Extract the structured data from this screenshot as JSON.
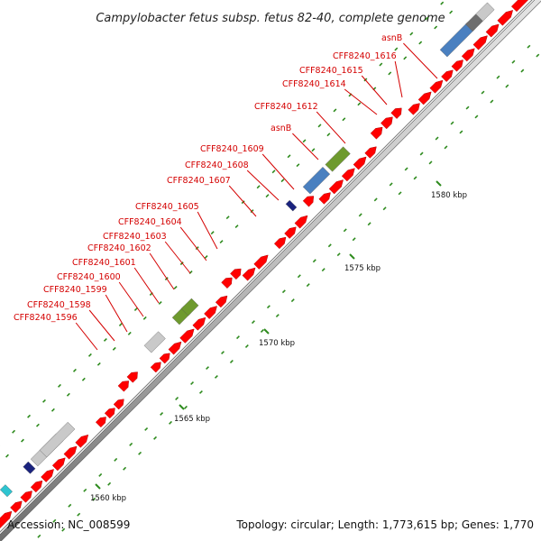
{
  "title": "Campylobacter fetus subsp. fetus 82-40, complete genome",
  "accession": "Accession: NC_008599",
  "topology": "Topology: circular; Length: 1,773,615 bp; Genes: 1,770",
  "colors": {
    "backbone_fill": "#c8c8c8",
    "backbone_edge": "#5a5a5a",
    "cds": "#ff0000",
    "cds_light": "#ff8a8a",
    "tick": "#2e8b1e",
    "label": "#d40000",
    "leader": "#d40000"
  },
  "scale_ticks": [
    {
      "label": "1560 kbp"
    },
    {
      "label": "1565 kbp"
    },
    {
      "label": "1570 kbp"
    },
    {
      "label": "1575 kbp"
    },
    {
      "label": "1580 kbp"
    }
  ],
  "gene_labels": [
    {
      "text": "CFF8240_1596"
    },
    {
      "text": "CFF8240_1598"
    },
    {
      "text": "CFF8240_1599"
    },
    {
      "text": "CFF8240_1600"
    },
    {
      "text": "CFF8240_1601"
    },
    {
      "text": "CFF8240_1602"
    },
    {
      "text": "CFF8240_1603"
    },
    {
      "text": "CFF8240_1604"
    },
    {
      "text": "CFF8240_1605"
    },
    {
      "text": "CFF8240_1607"
    },
    {
      "text": "CFF8240_1608"
    },
    {
      "text": "CFF8240_1609"
    },
    {
      "text": "asnB"
    },
    {
      "text": "CFF8240_1612"
    },
    {
      "text": "CFF8240_1614"
    },
    {
      "text": "CFF8240_1615"
    },
    {
      "text": "CFF8240_1616"
    },
    {
      "text": "asnB"
    }
  ],
  "feature_blocks": [
    {
      "type": "cyan",
      "color": "#2ec4d0"
    },
    {
      "type": "cyan",
      "color": "#2ec4d0"
    },
    {
      "type": "navy",
      "color": "#1a237e"
    },
    {
      "type": "grey",
      "color": "#c9c9c9"
    },
    {
      "type": "grey",
      "color": "#c9c9c9"
    },
    {
      "type": "olive",
      "color": "#6e9a2e"
    },
    {
      "type": "olive",
      "color": "#6e9a2e"
    },
    {
      "type": "grey",
      "color": "#c9c9c9"
    },
    {
      "type": "navy",
      "color": "#1a237e"
    },
    {
      "type": "blue",
      "color": "#4a80c0"
    },
    {
      "type": "olive",
      "color": "#6e9a2e"
    },
    {
      "type": "blue",
      "color": "#4a80c0"
    },
    {
      "type": "darkgrey",
      "color": "#6e6e6e"
    },
    {
      "type": "grey",
      "color": "#c9c9c9"
    }
  ]
}
